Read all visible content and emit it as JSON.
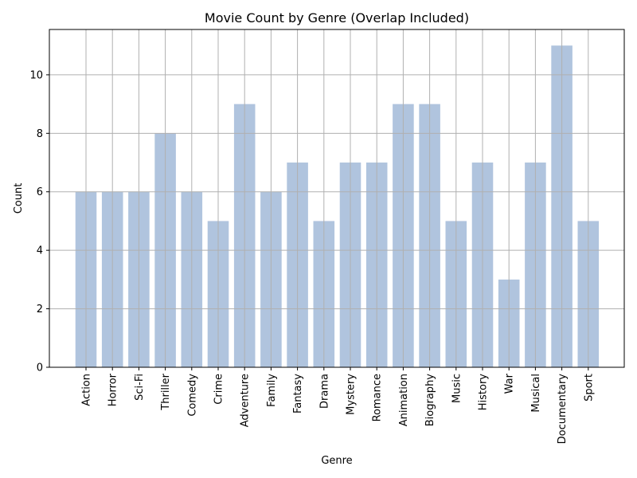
{
  "chart_data": {
    "type": "bar",
    "title": "Movie Count by Genre (Overlap Included)",
    "xlabel": "Genre",
    "ylabel": "Count",
    "categories": [
      "Action",
      "Horror",
      "Sci-Fi",
      "Thriller",
      "Comedy",
      "Crime",
      "Adventure",
      "Family",
      "Fantasy",
      "Drama",
      "Mystery",
      "Romance",
      "Animation",
      "Biography",
      "Music",
      "History",
      "War",
      "Musical",
      "Documentary",
      "Sport"
    ],
    "values": [
      6,
      6,
      6,
      8,
      6,
      5,
      9,
      6,
      7,
      5,
      7,
      7,
      9,
      9,
      5,
      7,
      3,
      7,
      11,
      5
    ],
    "ylim": [
      0,
      11.55
    ],
    "yticks": [
      0,
      2,
      4,
      6,
      8,
      10
    ],
    "grid": true,
    "bar_color": "#b0c4de"
  }
}
